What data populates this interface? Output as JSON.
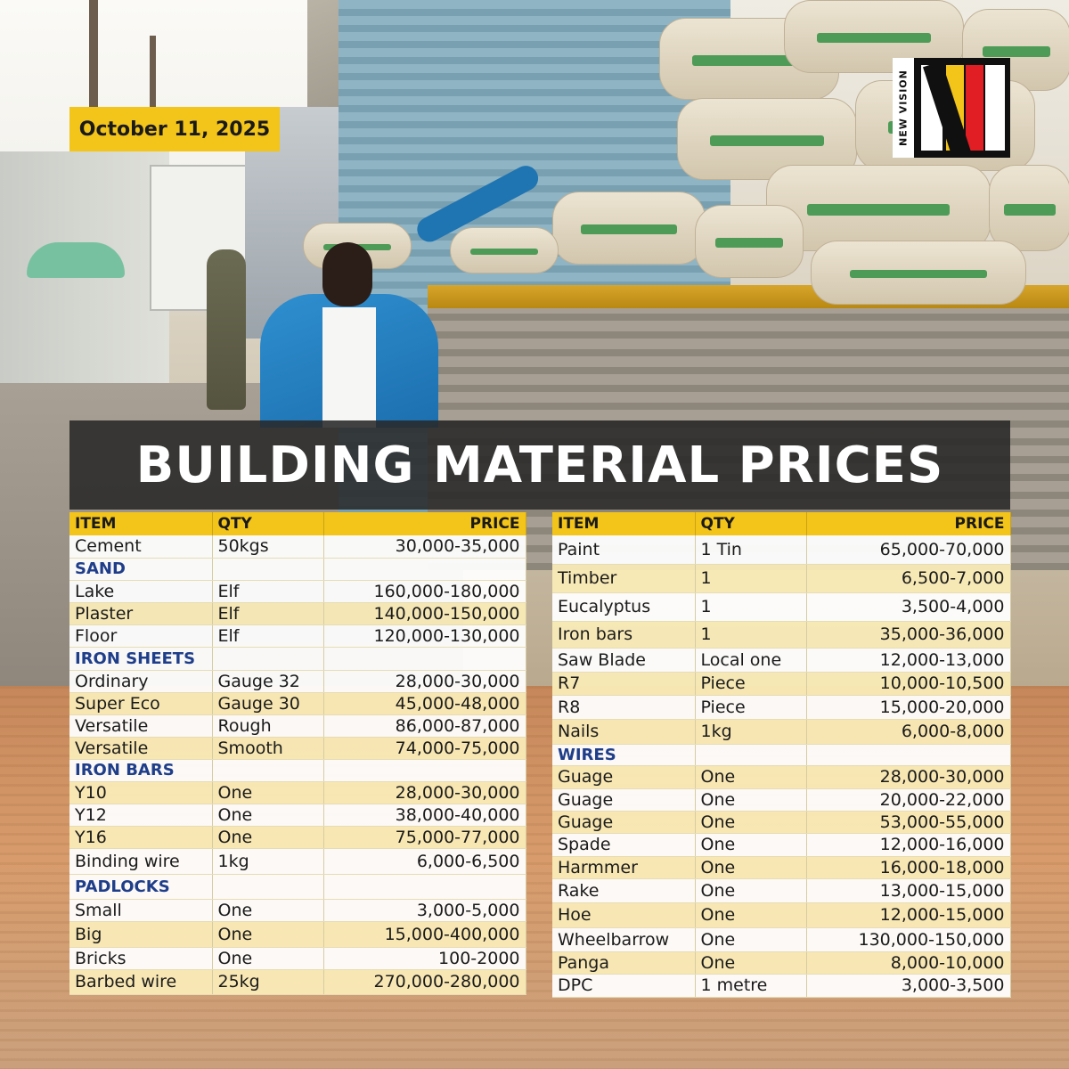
{
  "date": "October 11, 2025",
  "logo_text": "NEW VISION",
  "headline": "BUILDING MATERIAL PRICES",
  "colors": {
    "accent": "#f3c419",
    "headline_bg": "#282828",
    "category": "#1f3e8a"
  },
  "headers": {
    "item": "ITEM",
    "qty": "QTY",
    "price": "PRICE"
  },
  "left_rows": [
    {
      "type": "item",
      "item": "Cement",
      "qty": "50kgs",
      "price": "30,000-35,000"
    },
    {
      "type": "section",
      "item": "SAND"
    },
    {
      "type": "item",
      "item": "Lake",
      "qty": "Elf",
      "price": "160,000-180,000"
    },
    {
      "type": "item",
      "item": "Plaster",
      "qty": "Elf",
      "price": "140,000-150,000"
    },
    {
      "type": "item",
      "item": "Floor",
      "qty": "Elf",
      "price": "120,000-130,000"
    },
    {
      "type": "section",
      "item": "IRON SHEETS"
    },
    {
      "type": "item",
      "item": "Ordinary",
      "qty": "Gauge 32",
      "price": "28,000-30,000"
    },
    {
      "type": "item",
      "item": "Super Eco",
      "qty": "Gauge 30",
      "price": "45,000-48,000"
    },
    {
      "type": "item",
      "item": "Versatile",
      "qty": "Rough",
      "price": "86,000-87,000"
    },
    {
      "type": "item",
      "item": "Versatile",
      "qty": "Smooth",
      "price": "74,000-75,000"
    },
    {
      "type": "section",
      "item": "IRON BARS"
    },
    {
      "type": "item",
      "item": "Y10",
      "qty": "One",
      "price": "28,000-30,000"
    },
    {
      "type": "item",
      "item": "Y12",
      "qty": "One",
      "price": "38,000-40,000"
    },
    {
      "type": "item",
      "item": "Y16",
      "qty": "One",
      "price": "75,000-77,000"
    },
    {
      "type": "item",
      "item": "Binding wire",
      "qty": "1kg",
      "price": "6,000-6,500"
    },
    {
      "type": "section",
      "item": "PADLOCKS"
    },
    {
      "type": "item",
      "item": "Small",
      "qty": "One",
      "price": "3,000-5,000"
    },
    {
      "type": "item",
      "item": "Big",
      "qty": "One",
      "price": "15,000-400,000"
    },
    {
      "type": "item",
      "item": "Bricks",
      "qty": "One",
      "price": "100-2000"
    },
    {
      "type": "item",
      "item": "Barbed wire",
      "qty": "25kg",
      "price": "270,000-280,000"
    }
  ],
  "right_rows": [
    {
      "type": "item",
      "item": "Paint",
      "qty": "1 Tin",
      "price": "65,000-70,000"
    },
    {
      "type": "item",
      "item": "Timber",
      "qty": "1",
      "price": "6,500-7,000"
    },
    {
      "type": "item",
      "item": "Eucalyptus",
      "qty": "1",
      "price": "3,500-4,000"
    },
    {
      "type": "item",
      "item": "Iron bars",
      "qty": "1",
      "price": "35,000-36,000"
    },
    {
      "type": "item",
      "item": "Saw Blade",
      "qty": "Local one",
      "price": "12,000-13,000"
    },
    {
      "type": "item",
      "item": "R7",
      "qty": "Piece",
      "price": "10,000-10,500"
    },
    {
      "type": "item",
      "item": "R8",
      "qty": "Piece",
      "price": "15,000-20,000"
    },
    {
      "type": "item",
      "item": "Nails",
      "qty": "1kg",
      "price": "6,000-8,000"
    },
    {
      "type": "section",
      "item": "WIRES"
    },
    {
      "type": "item",
      "item": "Guage",
      "qty": "One",
      "price": "28,000-30,000"
    },
    {
      "type": "item",
      "item": "Guage",
      "qty": "One",
      "price": "20,000-22,000"
    },
    {
      "type": "item",
      "item": "Guage",
      "qty": "One",
      "price": "53,000-55,000"
    },
    {
      "type": "item",
      "item": "Spade",
      "qty": "One",
      "price": "12,000-16,000"
    },
    {
      "type": "item",
      "item": "Harmmer",
      "qty": "One",
      "price": "16,000-18,000"
    },
    {
      "type": "item",
      "item": "Rake",
      "qty": "One",
      "price": "13,000-15,000"
    },
    {
      "type": "item",
      "item": "Hoe",
      "qty": "One",
      "price": "12,000-15,000"
    },
    {
      "type": "item",
      "item": "Wheelbarrow",
      "qty": "One",
      "price": "130,000-150,000"
    },
    {
      "type": "item",
      "item": "Panga",
      "qty": "One",
      "price": "8,000-10,000"
    },
    {
      "type": "item",
      "item": "DPC",
      "qty": "1 metre",
      "price": "3,000-3,500"
    }
  ]
}
